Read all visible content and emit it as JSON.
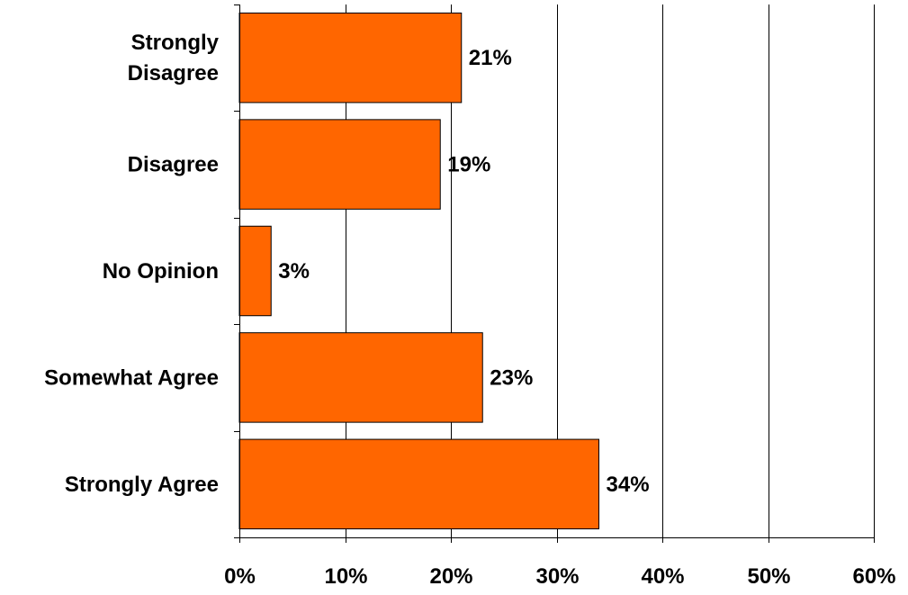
{
  "chart_data": {
    "type": "bar",
    "orientation": "horizontal",
    "categories": [
      "Strongly Disagree",
      "Disagree",
      "No Opinion",
      "Somewhat Agree",
      "Strongly Agree"
    ],
    "category_lines": [
      [
        "Strongly",
        "Disagree"
      ],
      [
        "Disagree"
      ],
      [
        "No Opinion"
      ],
      [
        "Somewhat Agree"
      ],
      [
        "Strongly Agree"
      ]
    ],
    "values": [
      21,
      19,
      3,
      23,
      34
    ],
    "value_labels": [
      "21%",
      "19%",
      "3%",
      "23%",
      "34%"
    ],
    "xlim": [
      0,
      60
    ],
    "x_ticks": [
      0,
      10,
      20,
      30,
      40,
      50,
      60
    ],
    "x_tick_labels": [
      "0%",
      "10%",
      "20%",
      "30%",
      "40%",
      "50%",
      "60%"
    ],
    "title": "",
    "xlabel": "",
    "ylabel": "",
    "grid": "vertical",
    "legend": "none",
    "colors": {
      "bar_fill": "#FF6600",
      "bar_stroke": "#000000",
      "grid": "#000000",
      "text": "#000000"
    }
  }
}
